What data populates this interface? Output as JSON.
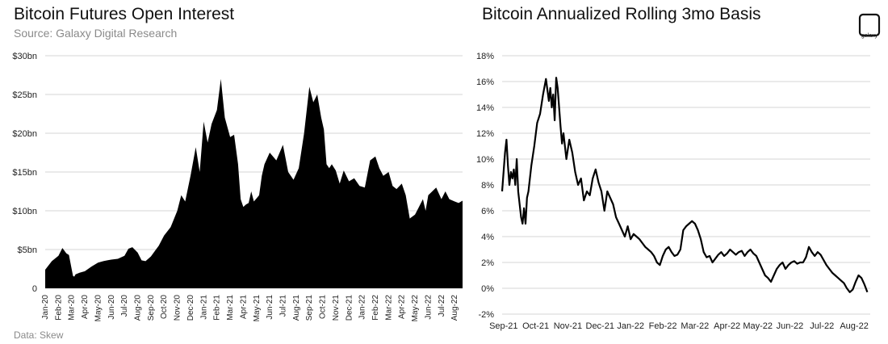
{
  "left_chart": {
    "title": "Bitcoin Futures Open Interest",
    "subtitle": "Source: Galaxy Digital Research"
  },
  "right_chart": {
    "title": "Bitcoin Annualized Rolling 3mo Basis"
  },
  "footer": {
    "source": "Data: Skew"
  },
  "logo": {
    "label": "galaxy"
  },
  "chart_data": [
    {
      "type": "area",
      "title": "Bitcoin Futures Open Interest",
      "subtitle": "Source: Galaxy Digital Research",
      "color": "#000000",
      "y_ticks": [
        "0",
        "$5bn",
        "$10bn",
        "$15bn",
        "$20bn",
        "$25bn",
        "$30bn"
      ],
      "ylim": [
        0,
        30
      ],
      "grid": true,
      "x_labels": [
        "Jan-20",
        "Feb-20",
        "Mar-20",
        "Apr-20",
        "May-20",
        "Jun-20",
        "Jul-20",
        "Aug-20",
        "Sep-20",
        "Oct-20",
        "Nov-20",
        "Dec-20",
        "Jan-21",
        "Feb-21",
        "Mar-21",
        "Apr-21",
        "May-21",
        "Jun-21",
        "Jul-21",
        "Aug-21",
        "Sep-21",
        "Oct-21",
        "Nov-21",
        "Dec-21",
        "Jan-22",
        "Feb-22",
        "Mar-22",
        "Apr-22",
        "May-22",
        "Jun-22",
        "Jul-22",
        "Aug-22"
      ],
      "x": [
        0,
        0.5,
        1,
        1.3,
        1.6,
        1.8,
        2.1,
        2.2,
        2.3,
        2.6,
        3,
        3.5,
        4,
        4.4,
        4.7,
        5,
        5.5,
        6,
        6.3,
        6.6,
        7,
        7.3,
        7.6,
        8,
        8.3,
        8.6,
        9,
        9.5,
        10,
        10.3,
        10.6,
        11,
        11.4,
        11.7,
        12,
        12.3,
        12.6,
        13,
        13.3,
        13.6,
        14,
        14.3,
        14.6,
        14.8,
        15,
        15.2,
        15.4,
        15.6,
        15.8,
        16,
        16.2,
        16.4,
        16.6,
        17,
        17.5,
        18,
        18.4,
        18.8,
        19.2,
        19.6,
        20,
        20.3,
        20.6,
        20.9,
        21.1,
        21.3,
        21.5,
        21.7,
        22,
        22.3,
        22.6,
        23,
        23.4,
        23.8,
        24.2,
        24.6,
        25,
        25.3,
        25.6,
        26,
        26.3,
        26.6,
        27,
        27.3,
        27.6,
        28,
        28.3,
        28.6,
        28.8,
        29,
        29.3,
        29.6,
        30,
        30.3,
        30.6,
        31,
        31.3,
        31.6
      ],
      "values": [
        2.4,
        3.5,
        4.2,
        5.2,
        4.5,
        4.3,
        1.6,
        1.5,
        1.8,
        2.0,
        2.2,
        2.8,
        3.3,
        3.5,
        3.6,
        3.7,
        3.8,
        4.2,
        5.1,
        5.3,
        4.6,
        3.6,
        3.5,
        4.1,
        4.8,
        5.5,
        6.8,
        7.9,
        10.0,
        12.0,
        11.2,
        14.5,
        18.2,
        15.0,
        21.5,
        18.8,
        21.2,
        23.0,
        27.0,
        22.0,
        19.5,
        19.8,
        16.0,
        11.5,
        10.5,
        10.8,
        11.0,
        12.5,
        11.2,
        11.6,
        12.0,
        14.5,
        16.0,
        17.5,
        16.5,
        18.5,
        15.0,
        14.0,
        15.5,
        20.0,
        26.0,
        24.0,
        25.0,
        22.0,
        20.5,
        16.0,
        15.5,
        16.0,
        15.2,
        13.5,
        15.2,
        13.8,
        14.2,
        13.2,
        13.0,
        16.5,
        17.0,
        15.5,
        14.5,
        15.0,
        13.2,
        12.8,
        13.5,
        12.0,
        9.0,
        9.5,
        10.5,
        11.5,
        10.0,
        12.0,
        12.5,
        13.0,
        11.5,
        12.5,
        11.5,
        11.2,
        11.0,
        11.3
      ]
    },
    {
      "type": "line",
      "title": "Bitcoin Annualized Rolling 3mo Basis",
      "color": "#000000",
      "y_ticks": [
        "-2%",
        "0%",
        "2%",
        "4%",
        "6%",
        "8%",
        "10%",
        "12%",
        "14%",
        "16%",
        "18%"
      ],
      "ylim": [
        -2,
        18
      ],
      "grid": true,
      "x_labels": [
        "Sep-21",
        "Oct-21",
        "Nov-21",
        "Dec-21",
        "Jan-22",
        "Feb-22",
        "Mar-22",
        "Apr-22",
        "May-22",
        "Jun-22",
        "Jul-22",
        "Aug-22"
      ],
      "x": [
        0,
        0.05,
        0.1,
        0.15,
        0.2,
        0.25,
        0.3,
        0.35,
        0.4,
        0.45,
        0.5,
        0.55,
        0.6,
        0.65,
        0.7,
        0.75,
        0.8,
        0.85,
        0.9,
        1,
        1.1,
        1.2,
        1.3,
        1.4,
        1.5,
        1.6,
        1.65,
        1.7,
        1.75,
        1.8,
        1.85,
        1.9,
        1.95,
        2,
        2.05,
        2.1,
        2.2,
        2.3,
        2.4,
        2.5,
        2.6,
        2.7,
        2.8,
        2.9,
        3,
        3.1,
        3.2,
        3.3,
        3.4,
        3.5,
        3.6,
        3.7,
        3.8,
        3.9,
        4,
        4.1,
        4.2,
        4.3,
        4.4,
        4.5,
        4.6,
        4.7,
        4.8,
        4.9,
        5,
        5.1,
        5.2,
        5.3,
        5.4,
        5.5,
        5.6,
        5.7,
        5.8,
        5.9,
        6,
        6.1,
        6.2,
        6.3,
        6.4,
        6.5,
        6.6,
        6.7,
        6.8,
        6.9,
        7,
        7.1,
        7.2,
        7.3,
        7.4,
        7.5,
        7.6,
        7.7,
        7.8,
        7.9,
        8,
        8.1,
        8.2,
        8.3,
        8.4,
        8.5,
        8.6,
        8.7,
        8.8,
        8.9,
        9,
        9.1,
        9.2,
        9.3,
        9.4,
        9.5,
        9.6,
        9.7,
        9.8,
        9.9,
        10,
        10.1,
        10.2,
        10.3,
        10.4,
        10.5,
        10.6,
        10.7,
        10.8,
        10.9,
        11,
        11.1,
        11.2,
        11.3,
        11.4,
        11.5,
        11.6,
        11.7,
        11.8,
        11.9,
        12,
        12.1,
        12.2,
        12.3,
        12.4,
        12.5
      ],
      "values": [
        7.5,
        9.0,
        10.5,
        11.5,
        9.5,
        8.0,
        9.0,
        8.5,
        9.2,
        8.0,
        10.0,
        7.5,
        6.5,
        5.5,
        5.0,
        6.2,
        5.0,
        7.0,
        7.5,
        9.5,
        11.0,
        12.8,
        13.5,
        15.0,
        16.2,
        14.5,
        15.5,
        14.0,
        15.0,
        13.0,
        16.3,
        15.5,
        14.0,
        12.5,
        11.2,
        12.0,
        10.0,
        11.5,
        10.5,
        9.0,
        8.0,
        8.5,
        6.8,
        7.5,
        7.2,
        8.5,
        9.2,
        8.2,
        7.5,
        6.0,
        7.5,
        7.0,
        6.5,
        5.5,
        5.0,
        4.5,
        4.0,
        4.8,
        3.8,
        4.2,
        4.0,
        3.8,
        3.5,
        3.2,
        3.0,
        2.8,
        2.5,
        2.0,
        1.8,
        2.5,
        3.0,
        3.2,
        2.8,
        2.5,
        2.6,
        3.0,
        4.5,
        4.8,
        5.0,
        5.2,
        5.0,
        4.5,
        3.8,
        2.8,
        2.4,
        2.5,
        2.0,
        2.3,
        2.6,
        2.8,
        2.5,
        2.7,
        3.0,
        2.8,
        2.6,
        2.8,
        2.9,
        2.5,
        2.8,
        3.0,
        2.7,
        2.5,
        2.0,
        1.5,
        1.0,
        0.8,
        0.5,
        1.0,
        1.5,
        1.8,
        2.0,
        1.5,
        1.8,
        2.0,
        2.1,
        1.9,
        2.0,
        2.0,
        2.4,
        3.2,
        2.8,
        2.5,
        2.8,
        2.6,
        2.2,
        1.8,
        1.5,
        1.2,
        1.0,
        0.8,
        0.6,
        0.4,
        0.0,
        -0.3,
        -0.1,
        0.5,
        1.0,
        0.8,
        0.3,
        -0.3
      ]
    }
  ]
}
